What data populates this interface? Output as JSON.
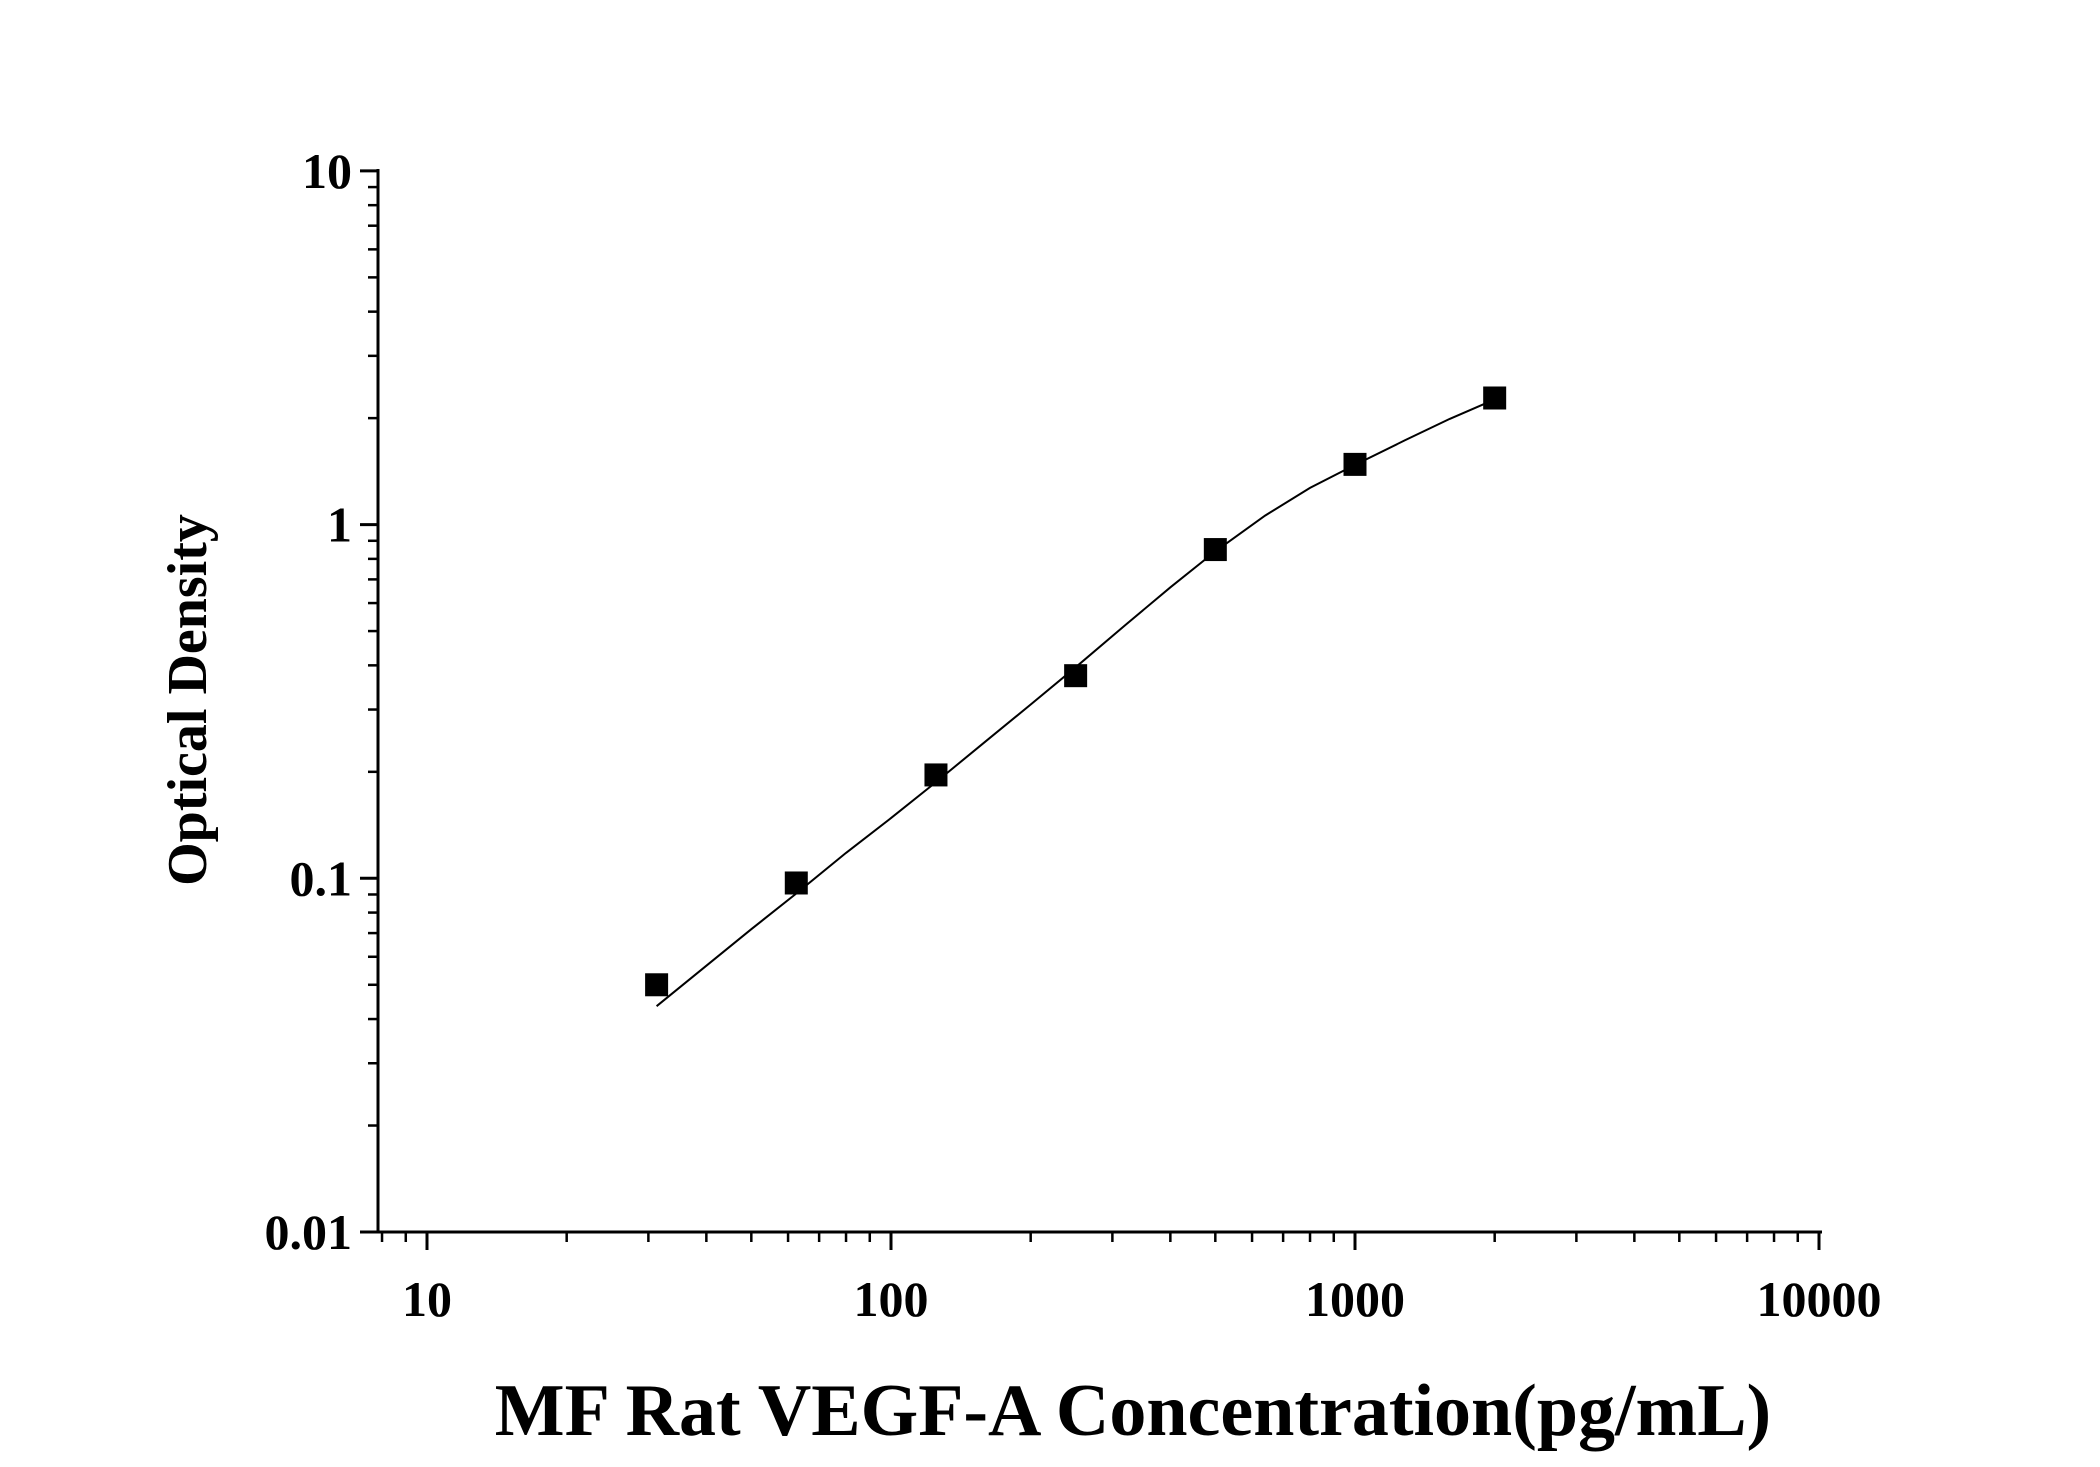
{
  "chart_data": {
    "type": "scatter",
    "title": "",
    "xlabel": "MF Rat VEGF-A Concentration(pg/mL)",
    "ylabel": "Optical Density",
    "x_scale": "log",
    "y_scale": "log",
    "xlim": [
      8,
      10000
    ],
    "ylim": [
      0.01,
      10
    ],
    "x_ticks": [
      {
        "value": 10,
        "label": "10"
      },
      {
        "value": 100,
        "label": "100"
      },
      {
        "value": 1000,
        "label": "1000"
      },
      {
        "value": 10000,
        "label": "10000"
      }
    ],
    "y_ticks": [
      {
        "value": 0.01,
        "label": "0.01"
      },
      {
        "value": 0.1,
        "label": "0.1"
      },
      {
        "value": 1,
        "label": "1"
      },
      {
        "value": 10,
        "label": "10"
      }
    ],
    "grid": false,
    "legend": "none",
    "series": [
      {
        "marker": "square",
        "color": "#000000",
        "x": [
          31.25,
          62.5,
          125,
          250,
          500,
          1000,
          2000
        ],
        "y": [
          0.05,
          0.097,
          0.196,
          0.374,
          0.85,
          1.48,
          2.28
        ]
      }
    ],
    "fit_curve": {
      "color": "#000000",
      "x": [
        31.25,
        40,
        50,
        62.5,
        80,
        100,
        125,
        160,
        200,
        250,
        320,
        400,
        500,
        640,
        800,
        1000,
        1280,
        1600,
        2000
      ],
      "y": [
        0.0435,
        0.0566,
        0.0718,
        0.0906,
        0.118,
        0.148,
        0.187,
        0.244,
        0.31,
        0.395,
        0.52,
        0.665,
        0.84,
        1.06,
        1.27,
        1.475,
        1.73,
        1.99,
        2.26
      ]
    }
  }
}
